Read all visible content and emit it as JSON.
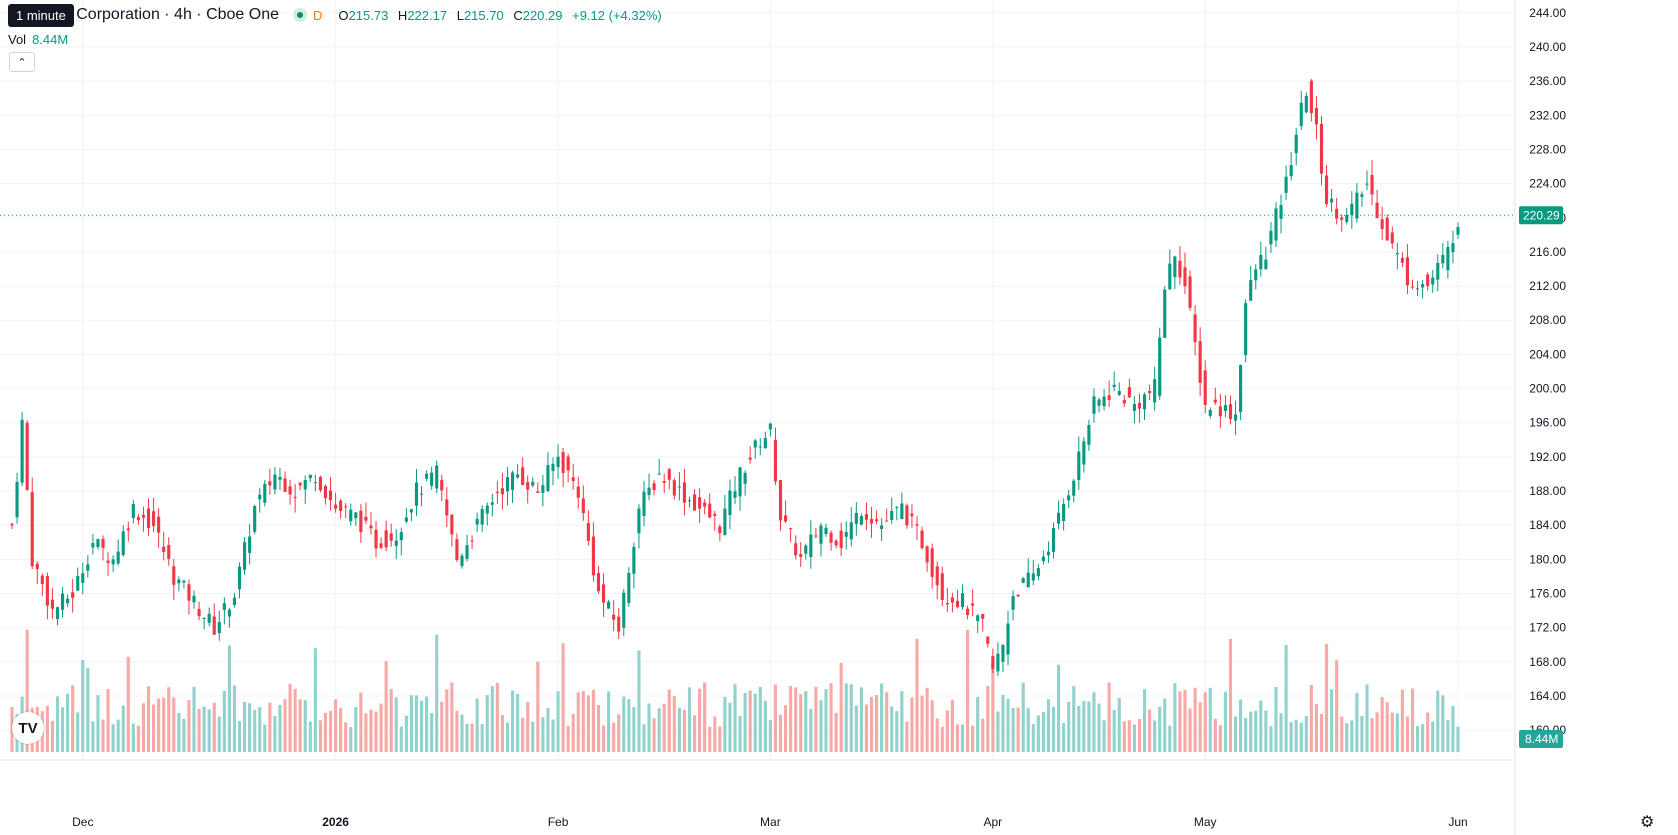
{
  "tooltip": "1 minute",
  "header": {
    "title": "A Corporation · 4h · Cboe One",
    "interval_tag": "D",
    "open_label": "O",
    "open": "215.73",
    "high_label": "H",
    "high": "222.17",
    "low_label": "L",
    "low": "215.70",
    "close_label": "C",
    "close": "220.29",
    "change": "+9.12 (+4.32%)"
  },
  "volume": {
    "label": "Vol",
    "value": "8.44M"
  },
  "icons": {
    "collapse": "chevron-up-icon",
    "logo": "tradingview-logo",
    "settings": "gear-icon"
  },
  "colors": {
    "up": "#089981",
    "down": "#f23645",
    "up_vol": "#92d2cc",
    "down_vol": "#f7a9a7"
  },
  "chart_data": {
    "type": "candlestick",
    "y_axis": {
      "ticks": [
        "160.00",
        "164.00",
        "168.00",
        "172.00",
        "176.00",
        "180.00",
        "184.00",
        "188.00",
        "192.00",
        "196.00",
        "200.00",
        "204.00",
        "208.00",
        "212.00",
        "216.00",
        "220.00",
        "224.00",
        "228.00",
        "232.00",
        "236.00",
        "240.00",
        "244.00"
      ],
      "ylim": [
        156.5,
        245.5
      ]
    },
    "x_axis": {
      "ticks": [
        "Dec",
        "2026",
        "Feb",
        "Mar",
        "Apr",
        "May",
        "Jun"
      ]
    },
    "last_price": "220.29",
    "last_volume": "8.44M",
    "grid": true,
    "anchors": [
      [
        0,
        184
      ],
      [
        2,
        196
      ],
      [
        4,
        180
      ],
      [
        8,
        174
      ],
      [
        12,
        176
      ],
      [
        16,
        182
      ],
      [
        20,
        180
      ],
      [
        24,
        186
      ],
      [
        28,
        184
      ],
      [
        32,
        178
      ],
      [
        36,
        175
      ],
      [
        40,
        172
      ],
      [
        44,
        176
      ],
      [
        48,
        186
      ],
      [
        52,
        190
      ],
      [
        56,
        188
      ],
      [
        60,
        190
      ],
      [
        64,
        186
      ],
      [
        68,
        185
      ],
      [
        72,
        182
      ],
      [
        76,
        183
      ],
      [
        80,
        188
      ],
      [
        84,
        190
      ],
      [
        88,
        180
      ],
      [
        92,
        184
      ],
      [
        96,
        188
      ],
      [
        100,
        190
      ],
      [
        104,
        188
      ],
      [
        108,
        192
      ],
      [
        112,
        188
      ],
      [
        116,
        176
      ],
      [
        120,
        172
      ],
      [
        124,
        186
      ],
      [
        128,
        190
      ],
      [
        132,
        188
      ],
      [
        136,
        186
      ],
      [
        140,
        184
      ],
      [
        144,
        190
      ],
      [
        148,
        194
      ],
      [
        150,
        195
      ],
      [
        152,
        185
      ],
      [
        156,
        180
      ],
      [
        160,
        184
      ],
      [
        164,
        182
      ],
      [
        168,
        186
      ],
      [
        172,
        184
      ],
      [
        176,
        186
      ],
      [
        180,
        182
      ],
      [
        184,
        176
      ],
      [
        188,
        175
      ],
      [
        192,
        172
      ],
      [
        194,
        167
      ],
      [
        196,
        170
      ],
      [
        198,
        176
      ],
      [
        202,
        178
      ],
      [
        206,
        183
      ],
      [
        210,
        190
      ],
      [
        214,
        198
      ],
      [
        218,
        200
      ],
      [
        222,
        198
      ],
      [
        226,
        200
      ],
      [
        228,
        212
      ],
      [
        230,
        216
      ],
      [
        232,
        212
      ],
      [
        234,
        205
      ],
      [
        236,
        198
      ],
      [
        238,
        198
      ],
      [
        242,
        197
      ],
      [
        244,
        210
      ],
      [
        246,
        214
      ],
      [
        248,
        216
      ],
      [
        250,
        220
      ],
      [
        252,
        224
      ],
      [
        254,
        230
      ],
      [
        256,
        235
      ],
      [
        258,
        230
      ],
      [
        260,
        222
      ],
      [
        264,
        220
      ],
      [
        268,
        224
      ],
      [
        272,
        218
      ],
      [
        276,
        213
      ],
      [
        280,
        212
      ],
      [
        284,
        216
      ],
      [
        286,
        220
      ]
    ]
  }
}
